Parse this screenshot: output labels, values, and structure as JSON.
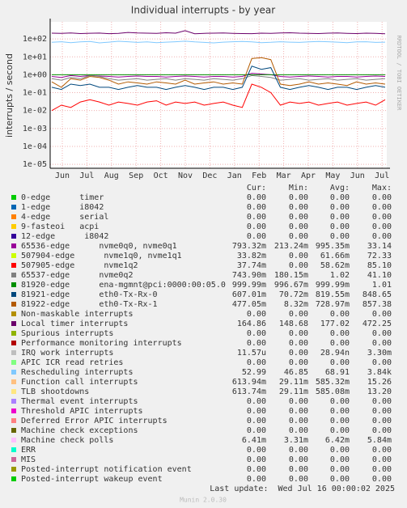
{
  "chart_data": {
    "type": "line",
    "title": "Individual interrupts - by year",
    "y_label": "interrupts / second",
    "side_note": "RRDTOOL / TOBI OETIKER",
    "log_scale": true,
    "grid": true,
    "ylim": [
      6e-06,
      900
    ],
    "yticks": [
      {
        "value": 1e-05,
        "label": "1e-05"
      },
      {
        "value": 0.0001,
        "label": "1e-04"
      },
      {
        "value": 0.001,
        "label": "1e-03"
      },
      {
        "value": 0.01,
        "label": "1e-02"
      },
      {
        "value": 0.1,
        "label": "1e-01"
      },
      {
        "value": 1,
        "label": "1e+00"
      },
      {
        "value": 10,
        "label": "1e+01"
      },
      {
        "value": 100,
        "label": "1e+02"
      }
    ],
    "x_labels": [
      "Jun",
      "Jul",
      "Aug",
      "Sep",
      "Oct",
      "Nov",
      "Dec",
      "Jan",
      "Feb",
      "Mar",
      "Apr",
      "May",
      "Jun",
      "Jul"
    ],
    "columns": [
      "Cur:",
      "Min:",
      "Avg:",
      "Max:"
    ],
    "series": [
      {
        "name": "0-edge      timer",
        "color": "#00cc00",
        "stats": [
          "0.00",
          "0.00",
          "0.00",
          "0.00"
        ]
      },
      {
        "name": "1-edge      i8042",
        "color": "#0066b3",
        "stats": [
          "0.00",
          "0.00",
          "0.00",
          "0.00"
        ]
      },
      {
        "name": "4-edge      serial",
        "color": "#ff8000",
        "stats": [
          "0.00",
          "0.00",
          "0.00",
          "0.00"
        ]
      },
      {
        "name": "9-fasteoi   acpi",
        "color": "#ffcc00",
        "stats": [
          "0.00",
          "0.00",
          "0.00",
          "0.00"
        ]
      },
      {
        "name": "12-edge      i8042",
        "color": "#330099",
        "stats": [
          "0.00",
          "0.00",
          "0.00",
          "0.00"
        ]
      },
      {
        "name": "65536-edge      nvme0q0, nvme0q1",
        "color": "#990099",
        "stats": [
          "793.32m",
          "213.24m",
          "995.35m",
          "33.14"
        ],
        "values": [
          0.8,
          0.7,
          0.9,
          0.8,
          0.9,
          0.85,
          0.8,
          0.75,
          0.8,
          0.85,
          0.8,
          0.8,
          0.75,
          0.8,
          0.85,
          0.8,
          0.75,
          0.8,
          0.8,
          0.75,
          0.8,
          1.2,
          1.1,
          1.0,
          0.8,
          0.75,
          0.8,
          0.85,
          0.8,
          0.75,
          0.8,
          0.8,
          0.75,
          0.8,
          0.85,
          0.8
        ]
      },
      {
        "name": "507904-edge      nvme1q0, nvme1q1",
        "color": "#ccff00",
        "stats": [
          "33.82m",
          "0.00",
          "61.66m",
          "72.33"
        ]
      },
      {
        "name": "507905-edge      nvme1q2",
        "color": "#ff0000",
        "stats": [
          "37.74m",
          "0.00",
          "58.62m",
          "85.10"
        ],
        "values": [
          0.01,
          0.02,
          0.015,
          0.03,
          0.04,
          0.03,
          0.02,
          0.03,
          0.025,
          0.02,
          0.03,
          0.035,
          0.02,
          0.03,
          0.025,
          0.03,
          0.02,
          0.025,
          0.03,
          0.02,
          0.015,
          0.3,
          0.2,
          0.1,
          0.02,
          0.03,
          0.025,
          0.03,
          0.02,
          0.025,
          0.03,
          0.02,
          0.025,
          0.03,
          0.02,
          0.04
        ]
      },
      {
        "name": "65537-edge      nvme0q2",
        "color": "#808080",
        "stats": [
          "743.90m",
          "180.15m",
          "1.02",
          "41.10"
        ],
        "values": [
          0.6,
          0.5,
          0.7,
          0.6,
          0.9,
          0.8,
          0.6,
          0.5,
          0.55,
          0.6,
          0.5,
          0.55,
          0.6,
          0.5,
          0.6,
          0.55,
          0.5,
          0.6,
          0.55,
          0.5,
          0.6,
          0.9,
          0.8,
          0.7,
          0.5,
          0.55,
          0.6,
          0.5,
          0.55,
          0.6,
          0.5,
          0.55,
          0.6,
          0.5,
          0.55,
          0.6
        ]
      },
      {
        "name": "81920-edge      ena-mgmnt@pci:0000:00:05.0",
        "color": "#008f00",
        "stats": [
          "999.99m",
          "996.67m",
          "999.99m",
          "1.01"
        ],
        "values": [
          1,
          1,
          1,
          1,
          1,
          1,
          1,
          1,
          1,
          1,
          1,
          1,
          1,
          1,
          1,
          1,
          1,
          1,
          1,
          1,
          1,
          1,
          1,
          1,
          1,
          1,
          1,
          1,
          1,
          1,
          1,
          1,
          1,
          1,
          1,
          1
        ]
      },
      {
        "name": "81921-edge      eth0-Tx-Rx-0",
        "color": "#00487d",
        "stats": [
          "607.01m",
          "70.72m",
          "819.55m",
          "848.65"
        ],
        "values": [
          0.2,
          0.15,
          0.3,
          0.25,
          0.3,
          0.2,
          0.2,
          0.15,
          0.2,
          0.25,
          0.2,
          0.2,
          0.15,
          0.2,
          0.25,
          0.2,
          0.15,
          0.2,
          0.2,
          0.15,
          0.2,
          3,
          2,
          2.5,
          0.2,
          0.15,
          0.2,
          0.25,
          0.2,
          0.15,
          0.2,
          0.2,
          0.15,
          0.2,
          0.25,
          0.2
        ]
      },
      {
        "name": "81922-edge      eth0-Tx-Rx-1",
        "color": "#b35a00",
        "stats": [
          "477.05m",
          "8.32m",
          "728.97m",
          "857.38"
        ],
        "values": [
          0.4,
          0.2,
          0.6,
          0.5,
          0.8,
          0.7,
          0.5,
          0.3,
          0.4,
          0.35,
          0.3,
          0.4,
          0.35,
          0.3,
          0.5,
          0.3,
          0.35,
          0.4,
          0.3,
          0.35,
          0.3,
          8,
          9,
          7,
          0.3,
          0.25,
          0.3,
          0.4,
          0.3,
          0.35,
          0.3,
          0.25,
          0.4,
          0.3,
          0.35,
          0.3
        ]
      },
      {
        "name": "Non-maskable interrupts",
        "color": "#b38f00",
        "stats": [
          "0.00",
          "0.00",
          "0.00",
          "0.00"
        ]
      },
      {
        "name": "Local timer interrupts",
        "color": "#6b006b",
        "stats": [
          "164.86",
          "148.68",
          "177.02",
          "472.25"
        ],
        "values": [
          210,
          205,
          215,
          200,
          208,
          212,
          198,
          205,
          230,
          215,
          210,
          205,
          220,
          210,
          290,
          195,
          205,
          210,
          215,
          205,
          200,
          198,
          210,
          205,
          215,
          220,
          210,
          205,
          200,
          210,
          215,
          205,
          200,
          210,
          205,
          195
        ]
      },
      {
        "name": "Spurious interrupts",
        "color": "#8fb300",
        "stats": [
          "0.00",
          "0.00",
          "0.00",
          "0.00"
        ]
      },
      {
        "name": "Performance monitoring interrupts",
        "color": "#b30000",
        "stats": [
          "0.00",
          "0.00",
          "0.00",
          "0.00"
        ]
      },
      {
        "name": "IRQ work interrupts",
        "color": "#bebebe",
        "stats": [
          "11.57u",
          "0.00",
          "28.94n",
          "3.30m"
        ]
      },
      {
        "name": "APIC ICR read retries",
        "color": "#80ff80",
        "stats": [
          "0.00",
          "0.00",
          "0.00",
          "0.00"
        ]
      },
      {
        "name": "Rescheduling interrupts",
        "color": "#80c9ff",
        "stats": [
          "52.99",
          "46.85",
          "68.91",
          "3.84k"
        ],
        "values": [
          65,
          70,
          62,
          68,
          72,
          60,
          66,
          74,
          70,
          64,
          68,
          62,
          66,
          70,
          75,
          68,
          64,
          60,
          66,
          70,
          72,
          68,
          62,
          65,
          70,
          66,
          64,
          68,
          72,
          70,
          66,
          62,
          68,
          70,
          64,
          66
        ]
      },
      {
        "name": "Function call interrupts",
        "color": "#ffc080",
        "stats": [
          "613.94m",
          "29.11m",
          "585.32m",
          "15.26"
        ]
      },
      {
        "name": "TLB shootdowns",
        "color": "#ffe680",
        "stats": [
          "613.74m",
          "29.11m",
          "585.08m",
          "13.20"
        ]
      },
      {
        "name": "Thermal event interrupts",
        "color": "#aa80ff",
        "stats": [
          "0.00",
          "0.00",
          "0.00",
          "0.00"
        ]
      },
      {
        "name": "Threshold APIC interrupts",
        "color": "#ee00cc",
        "stats": [
          "0.00",
          "0.00",
          "0.00",
          "0.00"
        ]
      },
      {
        "name": "Deferred Error APIC interrupts",
        "color": "#ff8080",
        "stats": [
          "0.00",
          "0.00",
          "0.00",
          "0.00"
        ]
      },
      {
        "name": "Machine check exceptions",
        "color": "#666600",
        "stats": [
          "0.00",
          "0.00",
          "0.00",
          "0.00"
        ]
      },
      {
        "name": "Machine check polls",
        "color": "#ffbfff",
        "stats": [
          "6.41m",
          "3.31m",
          "6.42m",
          "5.84m"
        ]
      },
      {
        "name": "ERR",
        "color": "#00ffcc",
        "stats": [
          "0.00",
          "0.00",
          "0.00",
          "0.00"
        ]
      },
      {
        "name": "MIS",
        "color": "#cc6699",
        "stats": [
          "0.00",
          "0.00",
          "0.00",
          "0.00"
        ]
      },
      {
        "name": "Posted-interrupt notification event",
        "color": "#999900",
        "stats": [
          "0.00",
          "0.00",
          "0.00",
          "0.00"
        ]
      },
      {
        "name": "Posted-interrupt wakeup event",
        "color": "#00cc00",
        "stats": [
          "0.00",
          "0.00",
          "0.00",
          "0.00"
        ]
      }
    ],
    "last_update": "Last update:  Wed Jul 16 00:00:02 2025",
    "footer": "Munin 2.0.30"
  }
}
